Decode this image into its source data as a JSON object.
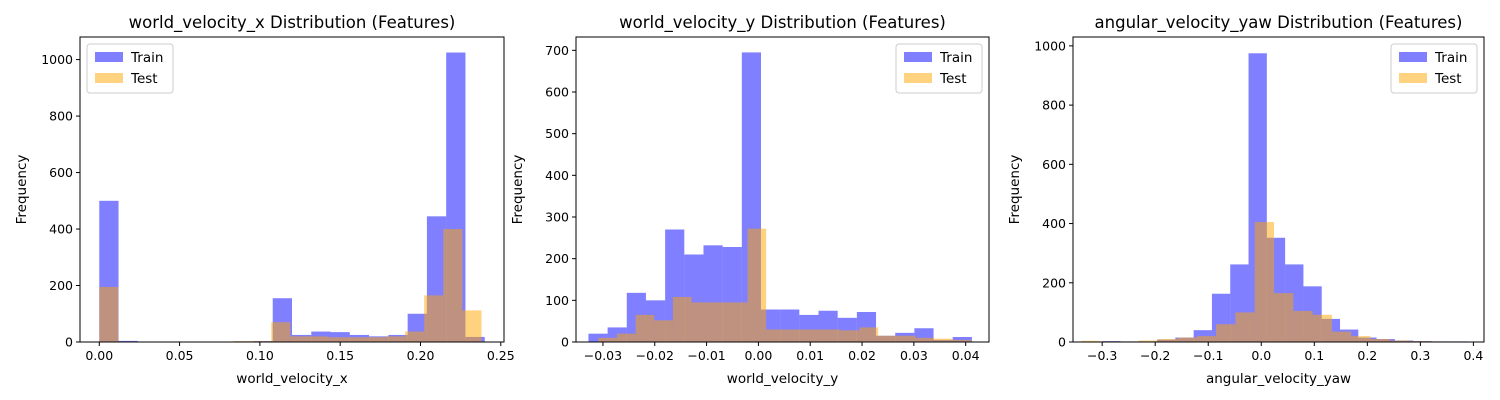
{
  "colors": {
    "train": "#0000ff",
    "test": "#ffa500",
    "bar_opacity": 0.5
  },
  "chart_data": [
    {
      "type": "histogram",
      "title": "world_velocity_x Distribution (Features)",
      "xlabel": "world_velocity_x",
      "ylabel": "Frequency",
      "xlim": [
        -0.012,
        0.252
      ],
      "ylim": [
        0,
        1080
      ],
      "xticks": [
        0.0,
        0.05,
        0.1,
        0.15,
        0.2,
        0.25
      ],
      "xtick_labels": [
        "0.00",
        "0.05",
        "0.10",
        "0.15",
        "0.20",
        "0.25"
      ],
      "yticks": [
        0,
        200,
        400,
        600,
        800,
        1000
      ],
      "ytick_labels": [
        "0",
        "200",
        "400",
        "600",
        "800",
        "1000"
      ],
      "legend": {
        "position": "upper-left",
        "entries": [
          "Train",
          "Test"
        ]
      },
      "series": [
        {
          "name": "Train",
          "bin_edges": [
            0.0,
            0.012,
            0.024,
            0.036,
            0.048,
            0.06,
            0.072,
            0.084,
            0.096,
            0.108,
            0.12,
            0.132,
            0.144,
            0.156,
            0.168,
            0.18,
            0.192,
            0.204,
            0.216,
            0.228,
            0.24
          ],
          "counts": [
            500,
            4,
            1,
            1,
            1,
            1,
            1,
            2,
            3,
            155,
            25,
            37,
            35,
            25,
            20,
            25,
            100,
            445,
            1025,
            18
          ]
        },
        {
          "name": "Test",
          "bin_edges": [
            0.0,
            0.0119,
            0.0238,
            0.0357,
            0.0476,
            0.0595,
            0.0714,
            0.0833,
            0.0952,
            0.1071,
            0.119,
            0.1309,
            0.1428,
            0.1547,
            0.1666,
            0.1785,
            0.1904,
            0.2023,
            0.2142,
            0.2261,
            0.238
          ],
          "counts": [
            195,
            1,
            1,
            1,
            1,
            1,
            1,
            3,
            3,
            70,
            20,
            20,
            17,
            17,
            17,
            20,
            37,
            165,
            400,
            112
          ]
        }
      ]
    },
    {
      "type": "histogram",
      "title": "world_velocity_y Distribution (Features)",
      "xlabel": "world_velocity_y",
      "ylabel": "Frequency",
      "xlim": [
        -0.0352,
        0.0445
      ],
      "ylim": [
        0,
        732
      ],
      "xticks": [
        -0.03,
        -0.02,
        -0.01,
        0.0,
        0.01,
        0.02,
        0.03,
        0.04
      ],
      "xtick_labels": [
        "−0.03",
        "−0.02",
        "−0.01",
        "0.00",
        "0.01",
        "0.02",
        "0.03",
        "0.04"
      ],
      "yticks": [
        0,
        100,
        200,
        300,
        400,
        500,
        600,
        700
      ],
      "ytick_labels": [
        "0",
        "100",
        "200",
        "300",
        "400",
        "500",
        "600",
        "700"
      ],
      "legend": {
        "position": "upper-right",
        "entries": [
          "Train",
          "Test"
        ]
      },
      "series": [
        {
          "name": "Train",
          "bin_edges": [
            -0.0328,
            -0.0291,
            -0.0254,
            -0.0217,
            -0.018,
            -0.0143,
            -0.0106,
            -0.0069,
            -0.0032,
            0.0005,
            0.0042,
            0.0079,
            0.0116,
            0.0153,
            0.019,
            0.0227,
            0.0264,
            0.0301,
            0.0338,
            0.0375,
            0.0412
          ],
          "counts": [
            20,
            35,
            118,
            100,
            270,
            210,
            232,
            228,
            695,
            78,
            78,
            65,
            75,
            58,
            72,
            15,
            22,
            33,
            5,
            12
          ]
        },
        {
          "name": "Test",
          "bin_edges": [
            -0.0309,
            -0.0273,
            -0.0237,
            -0.0201,
            -0.0165,
            -0.0129,
            -0.0093,
            -0.0057,
            -0.0021,
            0.0015,
            0.0051,
            0.0087,
            0.0123,
            0.0159,
            0.0195,
            0.0231,
            0.0267,
            0.0303,
            0.0339,
            0.0375,
            0.0411
          ],
          "counts": [
            10,
            20,
            65,
            52,
            108,
            95,
            95,
            95,
            272,
            30,
            30,
            30,
            30,
            28,
            35,
            15,
            15,
            10,
            8,
            5
          ]
        }
      ]
    },
    {
      "type": "histogram",
      "title": "angular_velocity_yaw Distribution (Features)",
      "xlabel": "angular_velocity_yaw",
      "ylabel": "Frequency",
      "xlim": [
        -0.355,
        0.42
      ],
      "ylim": [
        0,
        1030
      ],
      "xticks": [
        -0.3,
        -0.2,
        -0.1,
        0.0,
        0.1,
        0.2,
        0.3,
        0.4
      ],
      "xtick_labels": [
        "−0.3",
        "−0.2",
        "−0.1",
        "0.0",
        "0.1",
        "0.2",
        "0.3",
        "0.4"
      ],
      "yticks": [
        0,
        200,
        400,
        600,
        800,
        1000
      ],
      "ytick_labels": [
        "0",
        "200",
        "400",
        "600",
        "800",
        "1000"
      ],
      "legend": {
        "position": "upper-right",
        "entries": [
          "Train",
          "Test"
        ]
      },
      "series": [
        {
          "name": "Train",
          "bin_edges": [
            -0.3,
            -0.2655,
            -0.231,
            -0.1965,
            -0.162,
            -0.1275,
            -0.093,
            -0.0585,
            -0.024,
            0.0105,
            0.045,
            0.0795,
            0.114,
            0.1485,
            0.183,
            0.2175,
            0.252,
            0.2865,
            0.321,
            0.3555,
            0.39
          ],
          "counts": [
            3,
            2,
            2,
            8,
            15,
            40,
            163,
            262,
            975,
            352,
            262,
            188,
            78,
            42,
            15,
            10,
            5,
            3,
            2,
            2
          ]
        },
        {
          "name": "Test",
          "bin_edges": [
            -0.34,
            -0.3036,
            -0.2672,
            -0.2308,
            -0.1944,
            -0.158,
            -0.1216,
            -0.0852,
            -0.0488,
            -0.0124,
            0.024,
            0.0604,
            0.0968,
            0.1332,
            0.1696,
            0.206,
            0.2424,
            0.2788,
            0.3152,
            0.3516,
            0.388
          ],
          "counts": [
            4,
            2,
            2,
            5,
            10,
            15,
            20,
            60,
            100,
            405,
            165,
            105,
            92,
            35,
            20,
            10,
            5,
            3,
            2,
            1
          ]
        }
      ]
    }
  ]
}
